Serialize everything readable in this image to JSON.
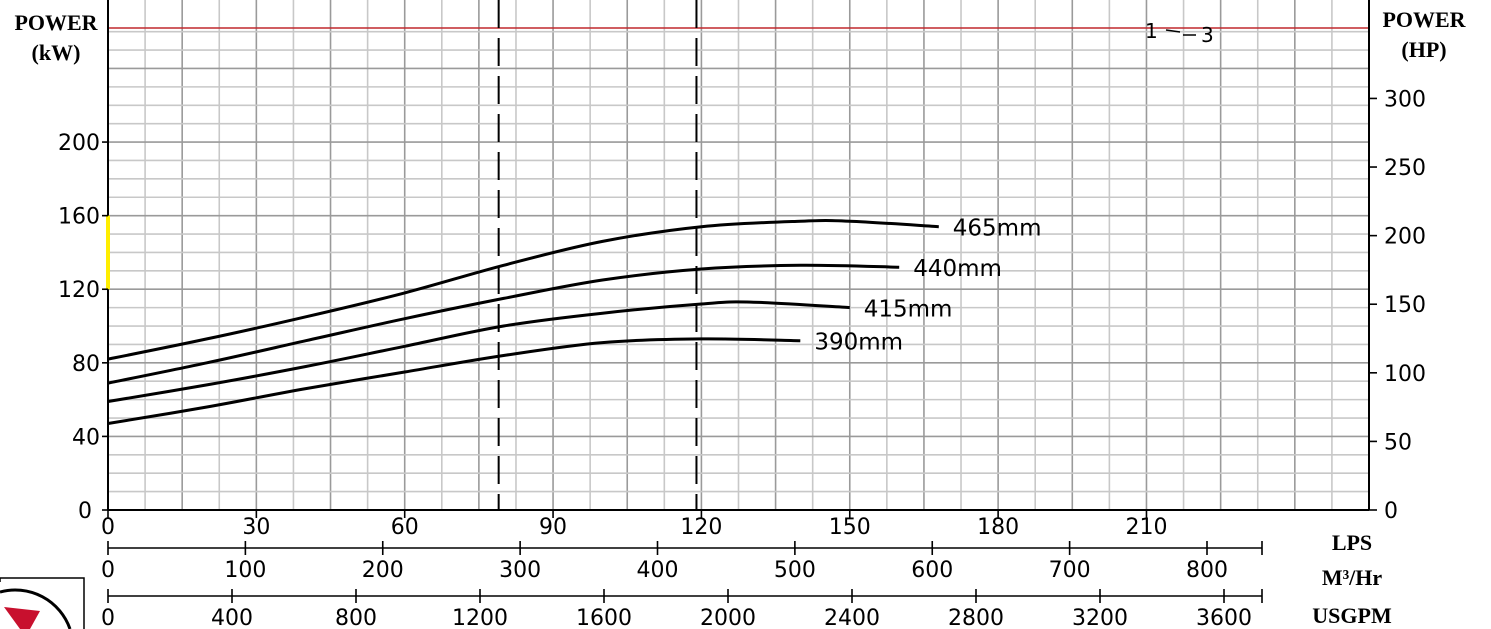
{
  "chart_data": {
    "type": "line",
    "left_axis_label": [
      "POWER",
      "(kW)"
    ],
    "right_axis_label": [
      "POWER",
      "(HP)"
    ],
    "x_units": [
      "LPS",
      "M³/Hr",
      "USGPM"
    ],
    "x_lps_ticks": [
      "0",
      "30",
      "60",
      "90",
      "120",
      "150",
      "180",
      "210"
    ],
    "x_m3hr_ticks": [
      "0",
      "100",
      "200",
      "300",
      "400",
      "500",
      "600",
      "700",
      "800"
    ],
    "x_usgpm_ticks": [
      "0",
      "400",
      "800",
      "1200",
      "1600",
      "2000",
      "2400",
      "2800",
      "3200",
      "3600"
    ],
    "y_left_ticks": [
      "0",
      "40",
      "80",
      "120",
      "160",
      "200"
    ],
    "y_right_ticks": [
      "0",
      "50",
      "100",
      "150",
      "200",
      "250",
      "300"
    ],
    "xlim": [
      0,
      255
    ],
    "ylim": [
      0,
      262
    ],
    "grid": true,
    "reference_line": {
      "y": 262,
      "label_left": "1",
      "label_right": "3"
    },
    "dashed_lines_x": [
      79,
      119
    ],
    "series": [
      {
        "name": "465mm",
        "x": [
          0,
          20,
          40,
          60,
          80,
          100,
          120,
          140,
          150,
          168
        ],
        "y": [
          82,
          93,
          105,
          118,
          133,
          146,
          154,
          157,
          157,
          154
        ]
      },
      {
        "name": "440mm",
        "x": [
          0,
          20,
          40,
          60,
          80,
          100,
          120,
          140,
          160
        ],
        "y": [
          69,
          80,
          92,
          104,
          115,
          125,
          131,
          133,
          132
        ]
      },
      {
        "name": "415mm",
        "x": [
          0,
          20,
          40,
          60,
          80,
          100,
          120,
          130,
          150
        ],
        "y": [
          59,
          68,
          78,
          89,
          100,
          107,
          112,
          113,
          110
        ]
      },
      {
        "name": "390mm",
        "x": [
          0,
          20,
          40,
          60,
          80,
          100,
          120,
          140
        ],
        "y": [
          47,
          56,
          66,
          75,
          84,
          91,
          93,
          92
        ]
      }
    ]
  }
}
